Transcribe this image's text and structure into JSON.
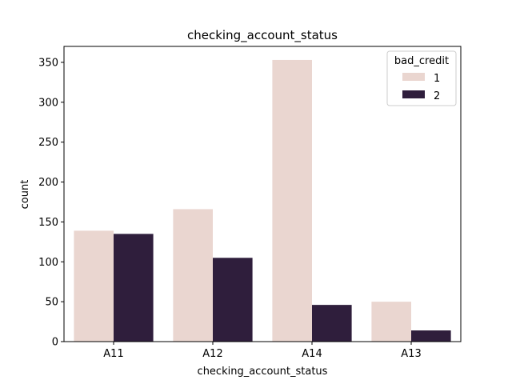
{
  "chart_data": {
    "type": "bar",
    "title": "checking_account_status",
    "xlabel": "checking_account_status",
    "ylabel": "count",
    "categories": [
      "A11",
      "A12",
      "A14",
      "A13"
    ],
    "series": [
      {
        "name": "1",
        "values": [
          139,
          166,
          353,
          50
        ],
        "color": "#ead6d0"
      },
      {
        "name": "2",
        "values": [
          135,
          105,
          46,
          14
        ],
        "color": "#2f1e3c"
      }
    ],
    "ylim": [
      0,
      370
    ],
    "yticks": [
      0,
      50,
      100,
      150,
      200,
      250,
      300,
      350
    ],
    "grid": false,
    "legend": {
      "title": "bad_credit",
      "placement": "top-right"
    }
  }
}
